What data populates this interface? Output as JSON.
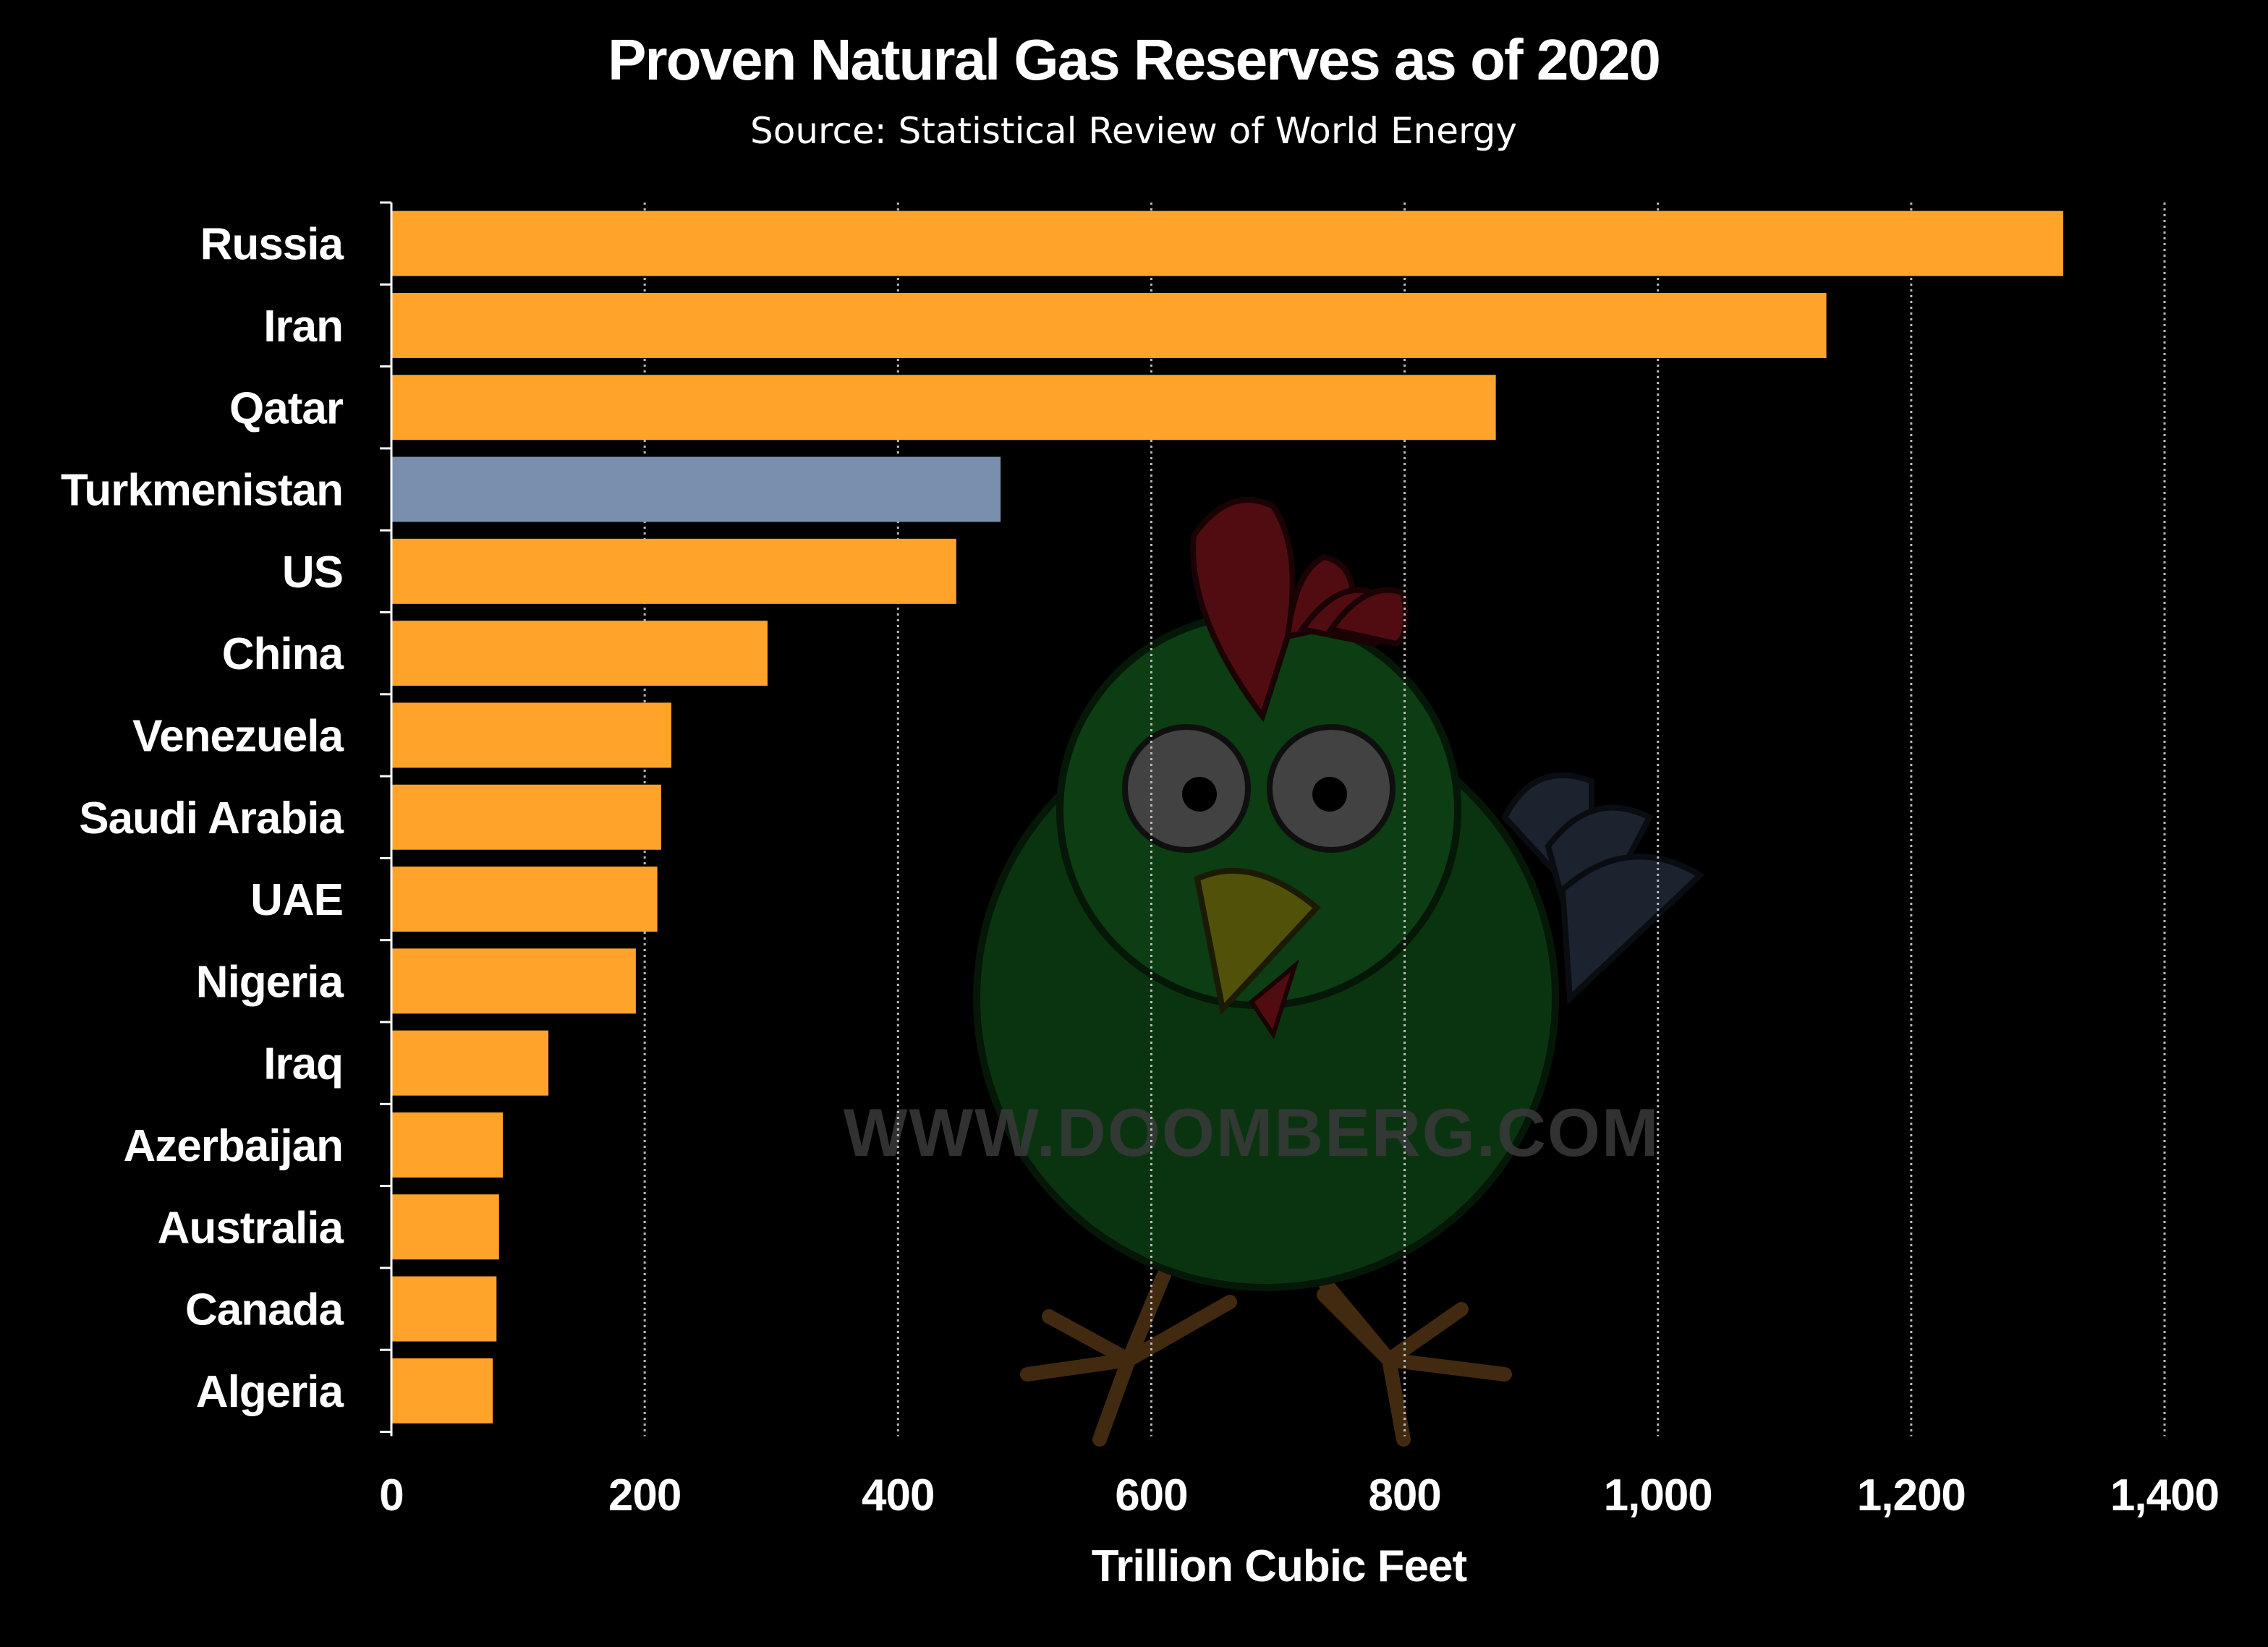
{
  "colors": {
    "background": "#000000",
    "bar": "#FFA32A",
    "bar_highlight": "#7A8FAE",
    "text": "#FFFFFF",
    "grid": "#BBBBBB"
  },
  "watermark": {
    "text": "WWW.DOOMBERG.COM",
    "icon": "chicken-mascot-icon"
  },
  "chart_data": {
    "type": "bar",
    "orientation": "horizontal",
    "title": "Proven Natural Gas Reserves as of 2020",
    "subtitle": "Source: Statistical Review of World Energy",
    "xlabel": "Trillion Cubic Feet",
    "ylabel": "",
    "xlim": [
      0,
      1400
    ],
    "xticks": [
      0,
      200,
      400,
      600,
      800,
      1000,
      1200,
      1400
    ],
    "xtick_labels": [
      "0",
      "200",
      "400",
      "600",
      "800",
      "1,000",
      "1,200",
      "1,400"
    ],
    "grid": "vertical dotted",
    "highlight": "Turkmenistan",
    "categories": [
      "Russia",
      "Iran",
      "Qatar",
      "Turkmenistan",
      "US",
      "China",
      "Venezuela",
      "Saudi Arabia",
      "UAE",
      "Nigeria",
      "Iraq",
      "Azerbaijan",
      "Australia",
      "Canada",
      "Algeria"
    ],
    "values": [
      1320,
      1133,
      872,
      481,
      446,
      297,
      221,
      213,
      210,
      193,
      124,
      88,
      85,
      83,
      80
    ]
  }
}
